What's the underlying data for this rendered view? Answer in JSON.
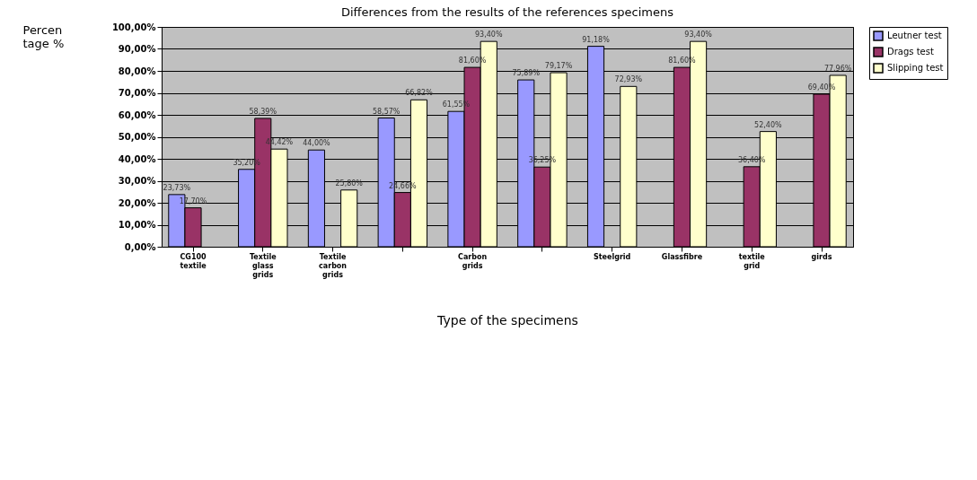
{
  "chart_data": {
    "type": "bar",
    "title": "Differences from the results of the references specimens",
    "xlabel": "Type of the specimens",
    "ylabel": "Percen\ntage %",
    "categories": [
      "CG100 textile",
      "Textile glass grids",
      "Textile carbon grids",
      null,
      "Carbon grids",
      null,
      "Steelgrid",
      "Glassfibre",
      "textile grid",
      "girds"
    ],
    "series": [
      {
        "name": "Leutner test",
        "color": "#9999ff",
        "values": [
          23.73,
          35.2,
          44.0,
          58.57,
          61.55,
          75.89,
          91.18,
          null,
          null,
          null
        ],
        "value_labels": [
          "23,73%",
          "35,20%",
          "44,00%",
          "58,57%",
          "61,55%",
          "75,89%",
          "91,18%",
          null,
          null,
          null
        ]
      },
      {
        "name": "Drags test",
        "color": "#993366",
        "values": [
          17.7,
          58.39,
          null,
          24.66,
          81.6,
          36.25,
          null,
          81.6,
          36.4,
          69.4
        ],
        "value_labels": [
          "17,70%",
          "58,39%",
          null,
          "24,66%",
          "81,60%",
          "36,25%",
          null,
          "81,60%",
          "36,40%",
          "69,40%"
        ]
      },
      {
        "name": "Slipping test",
        "color": "#ffffcc",
        "values": [
          null,
          44.42,
          25.8,
          66.82,
          93.4,
          79.17,
          72.93,
          93.4,
          52.4,
          77.96
        ],
        "value_labels": [
          null,
          "44,42%",
          "25,80%",
          "66,82%",
          "93,40%",
          "79,17%",
          "72,93%",
          "93,40%",
          "52,40%",
          "77,96%"
        ]
      }
    ],
    "ylim": [
      0,
      100
    ],
    "yticks": [
      {
        "value": 0,
        "label": "0,00%"
      },
      {
        "value": 10,
        "label": "10,00%"
      },
      {
        "value": 20,
        "label": "20,00%"
      },
      {
        "value": 30,
        "label": "30,00%"
      },
      {
        "value": 40,
        "label": "40,00%"
      },
      {
        "value": 50,
        "label": "50,00%"
      },
      {
        "value": 60,
        "label": "60,00%"
      },
      {
        "value": 70,
        "label": "70,00%"
      },
      {
        "value": 80,
        "label": "80,00%"
      },
      {
        "value": 90,
        "label": "90,00%"
      },
      {
        "value": 100,
        "label": "100,00%"
      }
    ],
    "grid": "y",
    "legend": "right"
  }
}
